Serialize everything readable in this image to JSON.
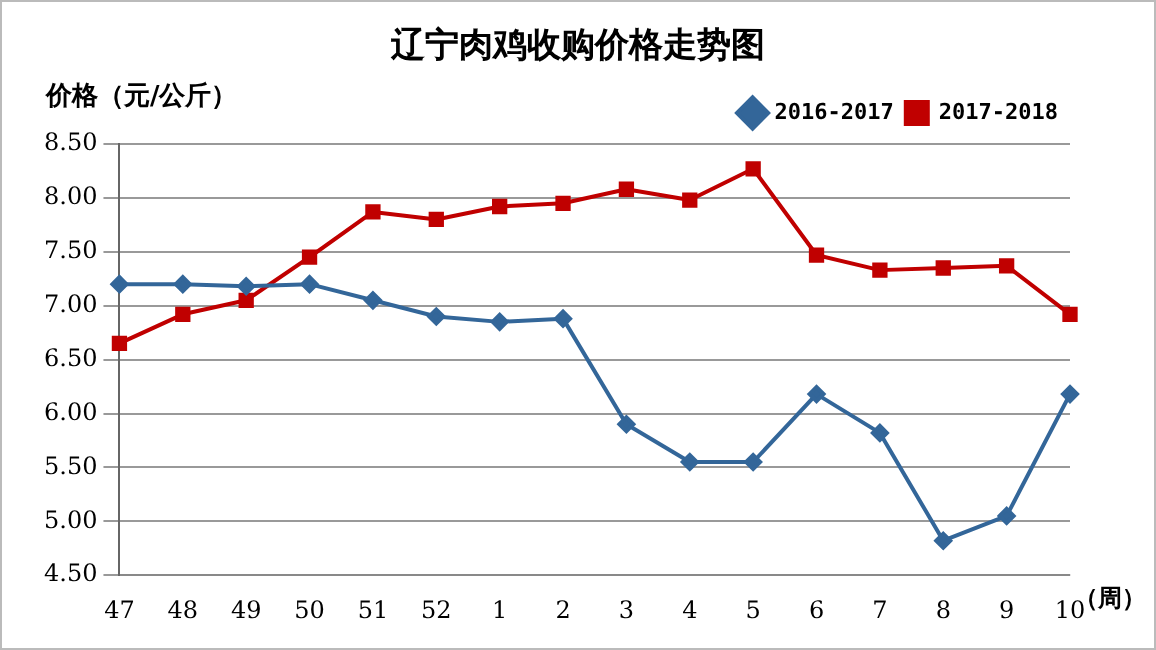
{
  "chart_data": {
    "type": "line",
    "title": "辽宁肉鸡收购价格走势图",
    "ylabel": "价格（元/公斤）",
    "xlabel": "（周）",
    "categories": [
      "47",
      "48",
      "49",
      "50",
      "51",
      "52",
      "1",
      "2",
      "3",
      "4",
      "5",
      "6",
      "7",
      "8",
      "9",
      "10"
    ],
    "series": [
      {
        "name": "2016-2017",
        "color": "#336699",
        "marker": "diamond",
        "values": [
          7.2,
          7.2,
          7.18,
          7.2,
          7.05,
          6.9,
          6.85,
          6.88,
          5.9,
          5.55,
          5.55,
          6.18,
          5.82,
          4.82,
          5.05,
          6.18
        ]
      },
      {
        "name": "2017-2018",
        "color": "#c00000",
        "marker": "square",
        "values": [
          6.65,
          6.92,
          7.05,
          7.45,
          7.87,
          7.8,
          7.92,
          7.95,
          8.08,
          7.98,
          8.27,
          7.47,
          7.33,
          7.35,
          7.37,
          6.92
        ]
      }
    ],
    "ylim": [
      4.5,
      8.5
    ],
    "yticks": [
      {
        "value": 4.5,
        "label": "4.50"
      },
      {
        "value": 5,
        "label": "5.00"
      },
      {
        "value": 5.5,
        "label": "5.50"
      },
      {
        "value": 6,
        "label": "6.00"
      },
      {
        "value": 6.5,
        "label": "6.50"
      },
      {
        "value": 7,
        "label": "7.00"
      },
      {
        "value": 7.5,
        "label": "7.50"
      },
      {
        "value": 8,
        "label": "8.00"
      },
      {
        "value": 8.5,
        "label": "8.50"
      }
    ],
    "grid": "y",
    "legend": "top right"
  }
}
